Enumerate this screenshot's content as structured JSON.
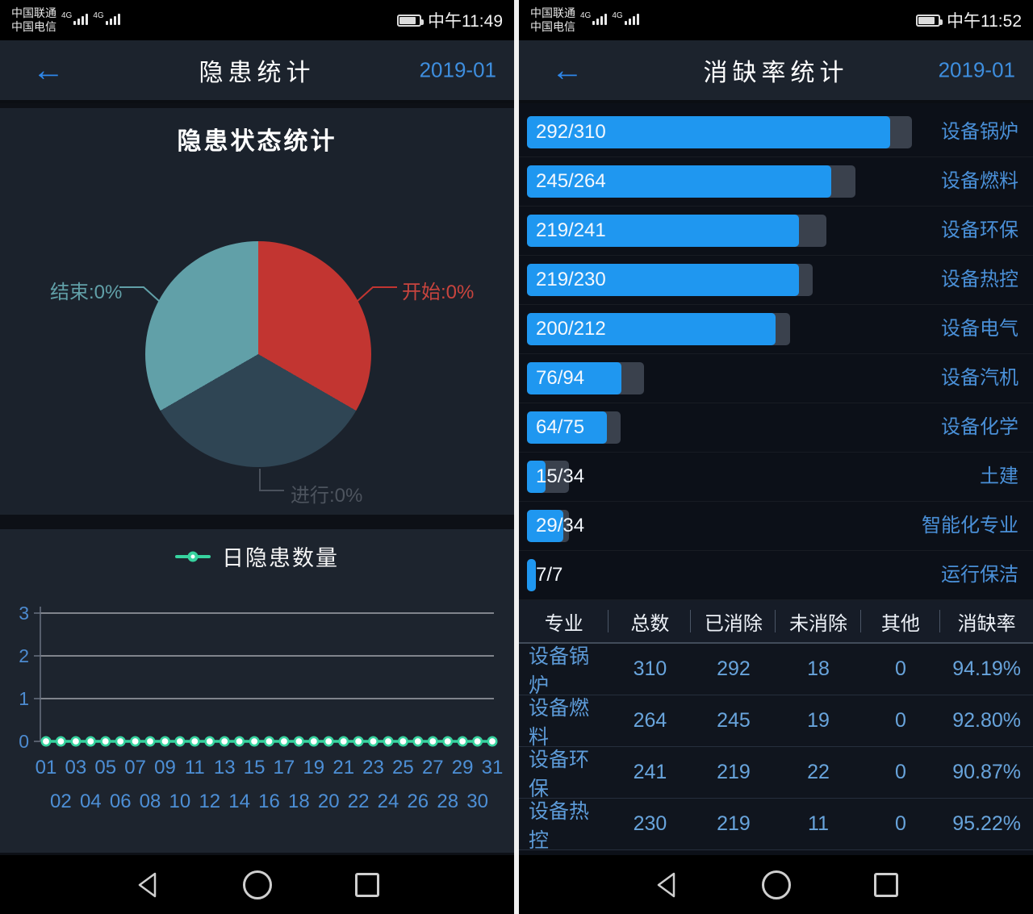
{
  "left_screen": {
    "status": {
      "carrier_top": "中国联通",
      "carrier_bottom": "中国电信",
      "net_badge": "4G",
      "time": "中午11:49"
    },
    "header": {
      "back_glyph": "←",
      "title": "隐患统计",
      "date": "2019-01"
    },
    "pie_section_title": "隐患状态统计",
    "legend_label": "日隐患数量"
  },
  "right_screen": {
    "status": {
      "carrier_top": "中国联通",
      "carrier_bottom": "中国电信",
      "net_badge": "4G",
      "time": "中午11:52"
    },
    "header": {
      "back_glyph": "←",
      "title": "消缺率统计",
      "date": "2019-01"
    }
  },
  "colors": {
    "bar_blue": "#1f97f0",
    "bar_track": "#3a414d",
    "line_green": "#37d39f",
    "axis_label_blue": "#4d8bd0",
    "pie_red": "#c23531",
    "pie_dark": "#2f4554",
    "pie_teal": "#61a0a8"
  },
  "chart_data": [
    {
      "type": "pie",
      "title": "隐患状态统计",
      "labels": [
        "开始",
        "进行",
        "结束"
      ],
      "values": [
        0,
        0,
        0
      ],
      "value_texts": [
        "开始:0%",
        "进行:0%",
        "结束:0%"
      ],
      "colors": [
        "#c23531",
        "#2f4554",
        "#61a0a8"
      ],
      "label_text_colors": [
        "#c8443e",
        "#4d545e",
        "#61a0a8"
      ],
      "layout": "three equal slices starting at 12 o'clock, clockwise: 开始(red), 进行(dark), 结束(teal)"
    },
    {
      "type": "line",
      "title": "日隐患数量",
      "x": [
        "01",
        "02",
        "03",
        "04",
        "05",
        "06",
        "07",
        "08",
        "09",
        "10",
        "11",
        "12",
        "13",
        "14",
        "15",
        "16",
        "17",
        "18",
        "19",
        "20",
        "21",
        "22",
        "23",
        "24",
        "25",
        "26",
        "27",
        "28",
        "29",
        "30",
        "31"
      ],
      "values": [
        0,
        0,
        0,
        0,
        0,
        0,
        0,
        0,
        0,
        0,
        0,
        0,
        0,
        0,
        0,
        0,
        0,
        0,
        0,
        0,
        0,
        0,
        0,
        0,
        0,
        0,
        0,
        0,
        0,
        0,
        0
      ],
      "ylim": [
        0,
        3
      ],
      "y_ticks": [
        0,
        1,
        2,
        3
      ],
      "grid": true,
      "line_color": "#37d39f",
      "marker": "white circle with green ring"
    },
    {
      "type": "bar",
      "orientation": "horizontal",
      "categories": [
        "设备锅炉",
        "设备燃料",
        "设备环保",
        "设备热控",
        "设备电气",
        "设备汽机",
        "设备化学",
        "土建",
        "智能化专业",
        "运行保洁"
      ],
      "series": [
        {
          "name": "已消除",
          "values": [
            292,
            245,
            219,
            219,
            200,
            76,
            64,
            15,
            29,
            7
          ]
        },
        {
          "name": "总数",
          "values": [
            310,
            264,
            241,
            230,
            212,
            94,
            75,
            34,
            34,
            7
          ]
        }
      ],
      "bar_labels": [
        "292/310",
        "245/264",
        "219/241",
        "219/230",
        "200/212",
        "76/94",
        "64/75",
        "15/34",
        "29/34",
        "7/7"
      ],
      "bar_color": "#1f97f0",
      "track_color": "#3a414d"
    },
    {
      "type": "table",
      "headers": [
        "专业",
        "总数",
        "已消除",
        "未消除",
        "其他",
        "消缺率"
      ],
      "rows": [
        [
          "设备锅炉",
          "310",
          "292",
          "18",
          "0",
          "94.19%"
        ],
        [
          "设备燃料",
          "264",
          "245",
          "19",
          "0",
          "92.80%"
        ],
        [
          "设备环保",
          "241",
          "219",
          "22",
          "0",
          "90.87%"
        ],
        [
          "设备热控",
          "230",
          "219",
          "11",
          "0",
          "95.22%"
        ]
      ]
    }
  ]
}
